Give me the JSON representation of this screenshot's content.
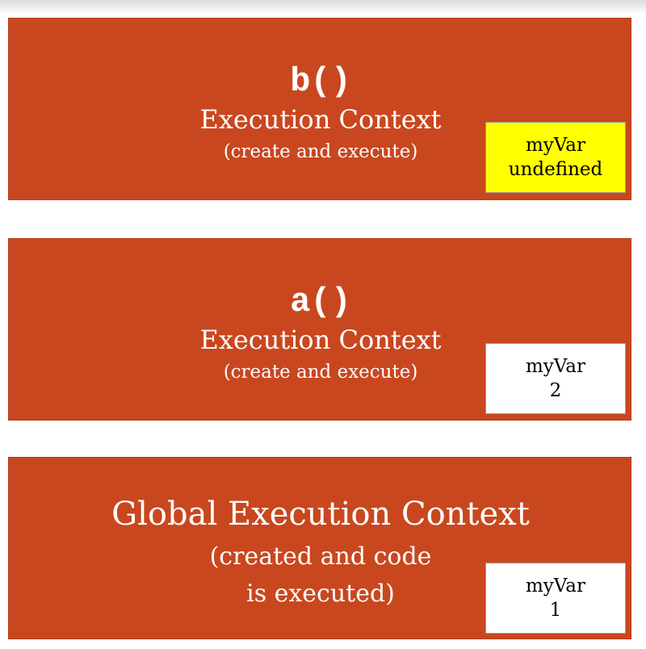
{
  "contexts": [
    {
      "id": "b",
      "function_name": "b()",
      "title": "Execution Context",
      "subtitle": "(create and execute)",
      "variable": {
        "name": "myVar",
        "value": "undefined",
        "highlight_color": "#ffff00"
      }
    },
    {
      "id": "a",
      "function_name": "a()",
      "title": "Execution Context",
      "subtitle": "(create and execute)",
      "variable": {
        "name": "myVar",
        "value": "2",
        "highlight_color": "#ffffff"
      }
    },
    {
      "id": "global",
      "title": "Global Execution Context",
      "subtitle_line1": "(created and code",
      "subtitle_line2": "is executed)",
      "variable": {
        "name": "myVar",
        "value": "1",
        "highlight_color": "#ffffff"
      }
    }
  ],
  "colors": {
    "context_box": "#c9471f",
    "text": "#ffffff"
  }
}
